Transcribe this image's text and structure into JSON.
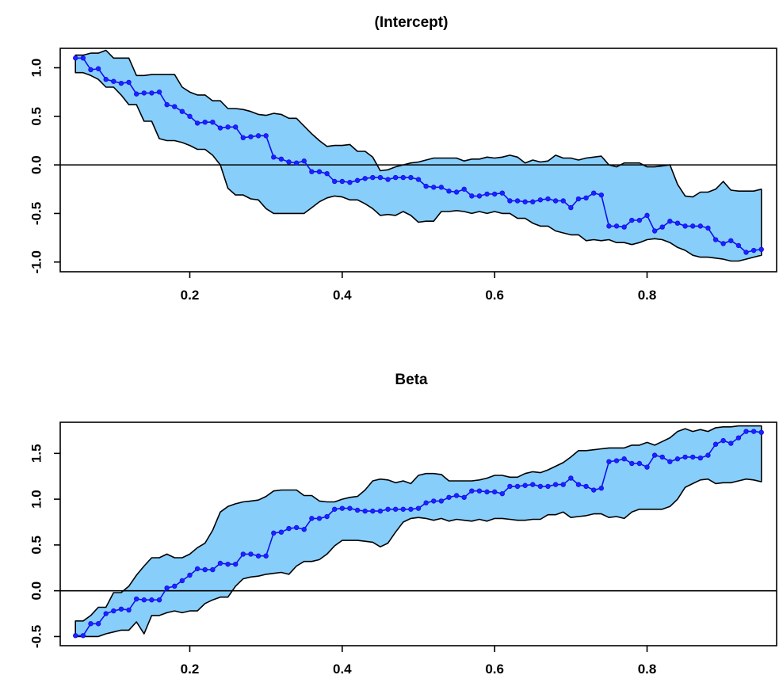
{
  "colors": {
    "band_fill": "#87cefa",
    "band_stroke": "#000000",
    "line": "#1010ee",
    "point": "#2020ff",
    "zero_line": "#000000"
  },
  "chart_data": [
    {
      "type": "line",
      "title": "(Intercept)",
      "xlabel": "",
      "ylabel": "",
      "xlim": [
        0.03,
        0.97
      ],
      "ylim": [
        -1.1,
        1.2
      ],
      "x_ticks": [
        0.2,
        0.4,
        0.6,
        0.8
      ],
      "x_tick_labels": [
        "0.2",
        "0.4",
        "0.6",
        "0.8"
      ],
      "y_ticks": [
        -1.0,
        -0.5,
        0.0,
        0.5,
        1.0
      ],
      "y_tick_labels": [
        "-1.0",
        "-0.5",
        "0.0",
        "0.5",
        "1.0"
      ],
      "reference_line": 0,
      "grid": false,
      "x": [
        0.05,
        0.06,
        0.07,
        0.08,
        0.09,
        0.1,
        0.11,
        0.12,
        0.13,
        0.14,
        0.15,
        0.16,
        0.17,
        0.18,
        0.19,
        0.2,
        0.21,
        0.22,
        0.23,
        0.24,
        0.25,
        0.26,
        0.27,
        0.28,
        0.29,
        0.3,
        0.31,
        0.32,
        0.33,
        0.34,
        0.35,
        0.36,
        0.37,
        0.38,
        0.39,
        0.4,
        0.41,
        0.42,
        0.43,
        0.44,
        0.45,
        0.46,
        0.47,
        0.48,
        0.49,
        0.5,
        0.51,
        0.52,
        0.53,
        0.54,
        0.55,
        0.56,
        0.57,
        0.58,
        0.59,
        0.6,
        0.61,
        0.62,
        0.63,
        0.64,
        0.65,
        0.66,
        0.67,
        0.68,
        0.69,
        0.7,
        0.71,
        0.72,
        0.73,
        0.74,
        0.75,
        0.76,
        0.77,
        0.78,
        0.79,
        0.8,
        0.81,
        0.82,
        0.83,
        0.84,
        0.85,
        0.86,
        0.87,
        0.88,
        0.89,
        0.9,
        0.91,
        0.92,
        0.93,
        0.94,
        0.95
      ],
      "estimate": [
        1.1,
        1.1,
        0.98,
        0.99,
        0.88,
        0.86,
        0.84,
        0.85,
        0.73,
        0.74,
        0.74,
        0.75,
        0.62,
        0.6,
        0.55,
        0.5,
        0.43,
        0.44,
        0.44,
        0.38,
        0.39,
        0.39,
        0.28,
        0.29,
        0.3,
        0.3,
        0.08,
        0.06,
        0.03,
        0.02,
        0.04,
        -0.07,
        -0.07,
        -0.09,
        -0.17,
        -0.17,
        -0.18,
        -0.16,
        -0.14,
        -0.13,
        -0.13,
        -0.15,
        -0.13,
        -0.13,
        -0.13,
        -0.15,
        -0.22,
        -0.23,
        -0.23,
        -0.27,
        -0.28,
        -0.25,
        -0.32,
        -0.32,
        -0.3,
        -0.3,
        -0.29,
        -0.37,
        -0.37,
        -0.38,
        -0.38,
        -0.36,
        -0.35,
        -0.37,
        -0.37,
        -0.44,
        -0.35,
        -0.34,
        -0.29,
        -0.31,
        -0.63,
        -0.63,
        -0.64,
        -0.57,
        -0.57,
        -0.52,
        -0.68,
        -0.64,
        -0.58,
        -0.6,
        -0.63,
        -0.63,
        -0.63,
        -0.65,
        -0.77,
        -0.81,
        -0.78,
        -0.83,
        -0.9,
        -0.88,
        -0.87
      ],
      "upper": [
        1.13,
        1.13,
        1.15,
        1.15,
        1.18,
        1.1,
        1.1,
        1.1,
        0.92,
        0.92,
        0.93,
        0.93,
        0.93,
        0.93,
        0.8,
        0.75,
        0.72,
        0.72,
        0.66,
        0.66,
        0.58,
        0.58,
        0.57,
        0.55,
        0.52,
        0.51,
        0.53,
        0.52,
        0.48,
        0.48,
        0.4,
        0.32,
        0.25,
        0.19,
        0.2,
        0.2,
        0.21,
        0.14,
        0.14,
        0.08,
        -0.06,
        -0.05,
        -0.02,
        0.0,
        0.02,
        0.03,
        0.05,
        0.07,
        0.07,
        0.07,
        0.07,
        0.04,
        0.06,
        0.06,
        0.08,
        0.07,
        0.08,
        0.1,
        0.08,
        0.02,
        0.05,
        0.03,
        0.04,
        0.1,
        0.07,
        0.07,
        0.05,
        0.07,
        0.08,
        0.09,
        0.0,
        -0.02,
        0.02,
        0.02,
        0.02,
        -0.02,
        -0.02,
        -0.01,
        0.0,
        -0.2,
        -0.32,
        -0.33,
        -0.28,
        -0.28,
        -0.25,
        -0.17,
        -0.26,
        -0.27,
        -0.27,
        -0.27,
        -0.25
      ],
      "lower": [
        0.95,
        0.95,
        0.92,
        0.88,
        0.8,
        0.8,
        0.72,
        0.62,
        0.62,
        0.45,
        0.45,
        0.27,
        0.25,
        0.25,
        0.23,
        0.2,
        0.16,
        0.16,
        0.1,
        0.0,
        -0.24,
        -0.31,
        -0.31,
        -0.35,
        -0.36,
        -0.45,
        -0.5,
        -0.5,
        -0.5,
        -0.5,
        -0.5,
        -0.44,
        -0.38,
        -0.34,
        -0.32,
        -0.33,
        -0.36,
        -0.36,
        -0.4,
        -0.45,
        -0.52,
        -0.51,
        -0.52,
        -0.48,
        -0.52,
        -0.59,
        -0.58,
        -0.58,
        -0.48,
        -0.48,
        -0.47,
        -0.48,
        -0.5,
        -0.48,
        -0.5,
        -0.48,
        -0.5,
        -0.5,
        -0.55,
        -0.55,
        -0.6,
        -0.63,
        -0.63,
        -0.68,
        -0.7,
        -0.72,
        -0.72,
        -0.78,
        -0.77,
        -0.78,
        -0.77,
        -0.8,
        -0.8,
        -0.82,
        -0.8,
        -0.77,
        -0.76,
        -0.77,
        -0.8,
        -0.85,
        -0.88,
        -0.93,
        -0.95,
        -0.95,
        -0.96,
        -0.97,
        -0.99,
        -0.99,
        -0.97,
        -0.95,
        -0.93
      ]
    },
    {
      "type": "line",
      "title": "Beta",
      "xlabel": "",
      "ylabel": "",
      "xlim": [
        0.03,
        0.97
      ],
      "ylim": [
        -0.6,
        1.84
      ],
      "x_ticks": [
        0.2,
        0.4,
        0.6,
        0.8
      ],
      "x_tick_labels": [
        "0.2",
        "0.4",
        "0.6",
        "0.8"
      ],
      "y_ticks": [
        -0.5,
        0.0,
        0.5,
        1.0,
        1.5
      ],
      "y_tick_labels": [
        "-0.5",
        "0.0",
        "0.5",
        "1.0",
        "1.5"
      ],
      "reference_line": 0,
      "grid": false,
      "x": [
        0.05,
        0.06,
        0.07,
        0.08,
        0.09,
        0.1,
        0.11,
        0.12,
        0.13,
        0.14,
        0.15,
        0.16,
        0.17,
        0.18,
        0.19,
        0.2,
        0.21,
        0.22,
        0.23,
        0.24,
        0.25,
        0.26,
        0.27,
        0.28,
        0.29,
        0.3,
        0.31,
        0.32,
        0.33,
        0.34,
        0.35,
        0.36,
        0.37,
        0.38,
        0.39,
        0.4,
        0.41,
        0.42,
        0.43,
        0.44,
        0.45,
        0.46,
        0.47,
        0.48,
        0.49,
        0.5,
        0.51,
        0.52,
        0.53,
        0.54,
        0.55,
        0.56,
        0.57,
        0.58,
        0.59,
        0.6,
        0.61,
        0.62,
        0.63,
        0.64,
        0.65,
        0.66,
        0.67,
        0.68,
        0.69,
        0.7,
        0.71,
        0.72,
        0.73,
        0.74,
        0.75,
        0.76,
        0.77,
        0.78,
        0.79,
        0.8,
        0.81,
        0.82,
        0.83,
        0.84,
        0.85,
        0.86,
        0.87,
        0.88,
        0.89,
        0.9,
        0.91,
        0.92,
        0.93,
        0.94,
        0.95
      ],
      "estimate": [
        -0.49,
        -0.49,
        -0.36,
        -0.36,
        -0.25,
        -0.22,
        -0.2,
        -0.21,
        -0.09,
        -0.1,
        -0.1,
        -0.1,
        0.03,
        0.05,
        0.11,
        0.17,
        0.24,
        0.23,
        0.23,
        0.3,
        0.29,
        0.29,
        0.4,
        0.4,
        0.38,
        0.38,
        0.63,
        0.64,
        0.68,
        0.69,
        0.67,
        0.79,
        0.79,
        0.81,
        0.89,
        0.9,
        0.9,
        0.88,
        0.87,
        0.87,
        0.87,
        0.89,
        0.89,
        0.89,
        0.89,
        0.9,
        0.96,
        0.98,
        0.98,
        1.02,
        1.04,
        1.02,
        1.09,
        1.09,
        1.08,
        1.08,
        1.06,
        1.14,
        1.14,
        1.15,
        1.16,
        1.14,
        1.14,
        1.16,
        1.16,
        1.23,
        1.16,
        1.14,
        1.1,
        1.12,
        1.41,
        1.42,
        1.44,
        1.39,
        1.39,
        1.35,
        1.48,
        1.46,
        1.41,
        1.44,
        1.46,
        1.46,
        1.45,
        1.48,
        1.6,
        1.64,
        1.61,
        1.67,
        1.74,
        1.74,
        1.73
      ],
      "upper": [
        -0.33,
        -0.33,
        -0.27,
        -0.18,
        -0.18,
        -0.02,
        -0.02,
        0.05,
        0.17,
        0.27,
        0.36,
        0.36,
        0.4,
        0.36,
        0.36,
        0.4,
        0.47,
        0.52,
        0.66,
        0.86,
        0.92,
        0.95,
        0.97,
        0.98,
        0.99,
        1.03,
        1.09,
        1.1,
        1.1,
        1.1,
        1.04,
        1.04,
        0.98,
        0.97,
        0.97,
        1.0,
        1.02,
        1.03,
        1.1,
        1.2,
        1.22,
        1.21,
        1.18,
        1.2,
        1.17,
        1.26,
        1.28,
        1.28,
        1.27,
        1.2,
        1.2,
        1.2,
        1.2,
        1.21,
        1.23,
        1.26,
        1.26,
        1.24,
        1.24,
        1.28,
        1.3,
        1.29,
        1.32,
        1.36,
        1.4,
        1.46,
        1.53,
        1.53,
        1.54,
        1.55,
        1.56,
        1.56,
        1.56,
        1.59,
        1.59,
        1.62,
        1.59,
        1.63,
        1.67,
        1.74,
        1.77,
        1.74,
        1.76,
        1.74,
        1.78,
        1.79,
        1.79,
        1.8,
        1.8,
        1.8,
        1.8
      ],
      "lower": [
        -0.5,
        -0.5,
        -0.5,
        -0.5,
        -0.47,
        -0.45,
        -0.43,
        -0.43,
        -0.34,
        -0.47,
        -0.27,
        -0.27,
        -0.24,
        -0.22,
        -0.24,
        -0.22,
        -0.22,
        -0.14,
        -0.1,
        -0.07,
        -0.07,
        0.05,
        0.13,
        0.15,
        0.16,
        0.18,
        0.19,
        0.2,
        0.18,
        0.27,
        0.32,
        0.32,
        0.34,
        0.4,
        0.49,
        0.55,
        0.55,
        0.55,
        0.54,
        0.53,
        0.48,
        0.52,
        0.64,
        0.75,
        0.79,
        0.8,
        0.79,
        0.77,
        0.79,
        0.76,
        0.78,
        0.77,
        0.76,
        0.78,
        0.76,
        0.79,
        0.79,
        0.78,
        0.77,
        0.77,
        0.78,
        0.78,
        0.83,
        0.83,
        0.86,
        0.8,
        0.81,
        0.82,
        0.84,
        0.84,
        0.8,
        0.81,
        0.79,
        0.86,
        0.89,
        0.89,
        0.89,
        0.89,
        0.92,
        1.0,
        1.13,
        1.17,
        1.21,
        1.22,
        1.17,
        1.18,
        1.18,
        1.2,
        1.22,
        1.21,
        1.19
      ]
    }
  ]
}
